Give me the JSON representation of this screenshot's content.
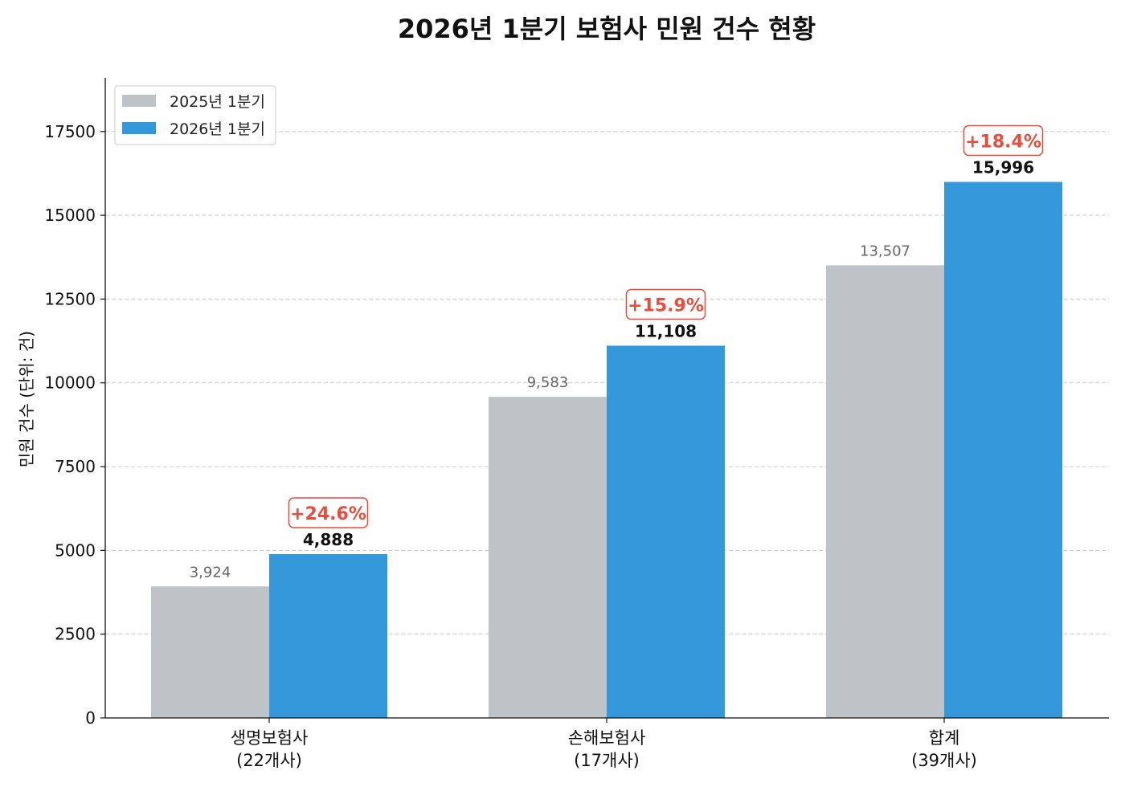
{
  "chart_data": {
    "type": "bar",
    "title": "2026년 1분기 보험사 민원 건수 현황",
    "ylabel": "민원 건수 (단위: 건)",
    "xlabel": "",
    "ylim": [
      0,
      19100
    ],
    "yticks": [
      0,
      2500,
      5000,
      7500,
      10000,
      12500,
      15000,
      17500
    ],
    "grid": "y-dashed",
    "legend_position": "top-left",
    "categories": [
      [
        "생명보험사",
        "(22개사)"
      ],
      [
        "손해보험사",
        "(17개사)"
      ],
      [
        "합계",
        "(39개사)"
      ]
    ],
    "series": [
      {
        "name": "2025년 1분기",
        "color": "#bdc3c7",
        "values": [
          3924,
          9583,
          13507
        ],
        "labels": [
          "3,924",
          "9,583",
          "13,507"
        ]
      },
      {
        "name": "2026년 1분기",
        "color": "#3498db",
        "values": [
          4888,
          11108,
          15996
        ],
        "labels": [
          "4,888",
          "11,108",
          "15,996"
        ]
      }
    ],
    "annotations": [
      "+24.6%",
      "+15.9%",
      "+18.4%"
    ],
    "annotation_color": "#e74c3c"
  }
}
